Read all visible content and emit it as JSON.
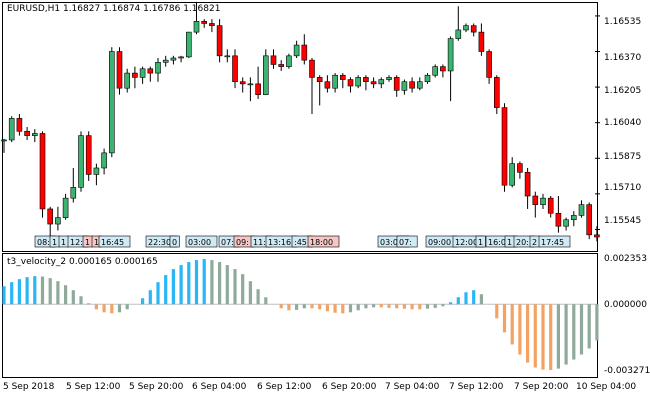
{
  "symbol_header": "EURUSD,H1  1.16827 1.16874 1.16786 1.16821",
  "indicator_header": "t3_velocity_2 0.000165 0.000165",
  "colors": {
    "bull": "#3cb371",
    "bear": "#ff0000",
    "up_hist": "#29b6f6",
    "down_hist": "#f4a261",
    "neutral_hist": "#8faa9a",
    "grid": "#c0c0c0"
  },
  "price_axis": [
    "1.16535",
    "1.16370",
    "1.16205",
    "1.16040",
    "1.15875",
    "1.15710",
    "1.15545"
  ],
  "indicator_axis": [
    "0.002353",
    "0.000000",
    "-0.003271"
  ],
  "time_axis": [
    "5 Sep 2018",
    "5 Sep 12:00",
    "5 Sep 20:00",
    "6 Sep 04:00",
    "6 Sep 12:00",
    "6 Sep 20:00",
    "7 Sep 04:00",
    "7 Sep 12:00",
    "7 Sep 20:00",
    "10 Sep 04:00"
  ],
  "session_labels": [
    {
      "text": "08:",
      "color": "blue"
    },
    {
      "text": "1",
      "color": "blue"
    },
    {
      "text": "1",
      "color": "blue"
    },
    {
      "text": "12:",
      "color": "blue"
    },
    {
      "text": "1",
      "color": "red"
    },
    {
      "text": "1",
      "color": "red"
    },
    {
      "text": "16:45",
      "color": "blue"
    },
    {
      "text": "22:30",
      "color": "blue"
    },
    {
      "text": "0",
      "color": "blue"
    },
    {
      "text": "03:00",
      "color": "blue"
    },
    {
      "text": "07:",
      "color": "blue"
    },
    {
      "text": "09:",
      "color": "red"
    },
    {
      "text": "11:",
      "color": "blue"
    },
    {
      "text": "13:16",
      "color": "blue"
    },
    {
      "text": ":45",
      "color": "blue"
    },
    {
      "text": "18:00",
      "color": "red"
    },
    {
      "text": "03:00",
      "color": "blue"
    },
    {
      "text": "07:",
      "color": "blue"
    },
    {
      "text": "09:00",
      "color": "blue"
    },
    {
      "text": "12:00",
      "color": "blue"
    },
    {
      "text": "1",
      "color": "blue"
    },
    {
      "text": "16:00",
      "color": "blue"
    },
    {
      "text": "1",
      "color": "blue"
    },
    {
      "text": "20:",
      "color": "blue"
    },
    {
      "text": "2",
      "color": "blue"
    },
    {
      "text": "17:45",
      "color": "blue"
    }
  ],
  "chart_data": [
    {
      "type": "candlestick",
      "title": "EURUSD,H1",
      "ylim": [
        1.15445,
        1.16595
      ],
      "series": [
        {
          "name": "EURUSD,H1",
          "ohlc": [
            [
              1.1596,
              1.15965,
              1.159,
              1.1596
            ],
            [
              1.1596,
              1.1607,
              1.1595,
              1.1606
            ],
            [
              1.1606,
              1.1608,
              1.1598,
              1.16
            ],
            [
              1.16,
              1.1602,
              1.1596,
              1.1598
            ],
            [
              1.1598,
              1.1601,
              1.1595,
              1.1599
            ],
            [
              1.1599,
              1.16,
              1.156,
              1.1564
            ],
            [
              1.1564,
              1.1565,
              1.155,
              1.1557
            ],
            [
              1.1557,
              1.1565,
              1.1554,
              1.156
            ],
            [
              1.156,
              1.1571,
              1.1559,
              1.1569
            ],
            [
              1.1569,
              1.1583,
              1.1567,
              1.1574
            ],
            [
              1.1574,
              1.16,
              1.1572,
              1.1598
            ],
            [
              1.1598,
              1.16,
              1.1577,
              1.158
            ],
            [
              1.158,
              1.1585,
              1.1575,
              1.1583
            ],
            [
              1.1583,
              1.1592,
              1.158,
              1.159
            ],
            [
              1.159,
              1.1639,
              1.1588,
              1.1637
            ],
            [
              1.1637,
              1.1639,
              1.1617,
              1.162
            ],
            [
              1.162,
              1.1629,
              1.1618,
              1.1627
            ],
            [
              1.1627,
              1.163,
              1.162,
              1.1625
            ],
            [
              1.1625,
              1.163,
              1.1622,
              1.1629
            ],
            [
              1.1629,
              1.163,
              1.1623,
              1.1627
            ],
            [
              1.1627,
              1.1634,
              1.1623,
              1.1632
            ],
            [
              1.1632,
              1.1635,
              1.163,
              1.1633
            ],
            [
              1.1633,
              1.1635,
              1.1631,
              1.1634
            ],
            [
              1.1634,
              1.1635,
              1.1632,
              1.16345
            ],
            [
              1.16345,
              1.1646,
              1.1634,
              1.1646
            ],
            [
              1.1646,
              1.166,
              1.1645,
              1.1651
            ],
            [
              1.1651,
              1.1652,
              1.1648,
              1.165
            ],
            [
              1.165,
              1.1652,
              1.1646,
              1.1649
            ],
            [
              1.1649,
              1.1652,
              1.1632,
              1.1635
            ],
            [
              1.1635,
              1.1638,
              1.1632,
              1.1635
            ],
            [
              1.1635,
              1.1638,
              1.162,
              1.1623
            ],
            [
              1.1623,
              1.1625,
              1.1618,
              1.1622
            ],
            [
              1.1622,
              1.1625,
              1.1614,
              1.1622
            ],
            [
              1.1622,
              1.163,
              1.1615,
              1.1617
            ],
            [
              1.1617,
              1.1638,
              1.1617,
              1.1635
            ],
            [
              1.1635,
              1.1638,
              1.1629,
              1.1631
            ],
            [
              1.1631,
              1.1633,
              1.1628,
              1.163
            ],
            [
              1.163,
              1.1636,
              1.1629,
              1.1635
            ],
            [
              1.1635,
              1.1642,
              1.1634,
              1.164
            ],
            [
              1.164,
              1.1645,
              1.1631,
              1.1633
            ],
            [
              1.1633,
              1.1634,
              1.1608,
              1.1625
            ],
            [
              1.1625,
              1.1626,
              1.1612,
              1.1623
            ],
            [
              1.1623,
              1.1626,
              1.1618,
              1.162
            ],
            [
              1.162,
              1.1627,
              1.1618,
              1.1626
            ],
            [
              1.1626,
              1.1627,
              1.162,
              1.1624
            ],
            [
              1.1624,
              1.1625,
              1.1618,
              1.1621
            ],
            [
              1.1621,
              1.1626,
              1.162,
              1.1625
            ],
            [
              1.1625,
              1.1626,
              1.1619,
              1.1623
            ],
            [
              1.1623,
              1.1625,
              1.162,
              1.1622
            ],
            [
              1.1622,
              1.1625,
              1.162,
              1.1624
            ],
            [
              1.1624,
              1.1626,
              1.1623,
              1.1625
            ],
            [
              1.1625,
              1.1626,
              1.1616,
              1.1619
            ],
            [
              1.1619,
              1.1624,
              1.1617,
              1.1623
            ],
            [
              1.1623,
              1.1625,
              1.1618,
              1.162
            ],
            [
              1.162,
              1.1625,
              1.1619,
              1.1623
            ],
            [
              1.1623,
              1.1627,
              1.1622,
              1.1626
            ],
            [
              1.1626,
              1.1631,
              1.1625,
              1.163
            ],
            [
              1.163,
              1.1631,
              1.1625,
              1.1628
            ],
            [
              1.1628,
              1.1644,
              1.1614,
              1.1643
            ],
            [
              1.1643,
              1.1658,
              1.1642,
              1.1647
            ],
            [
              1.1647,
              1.165,
              1.1646,
              1.1649
            ],
            [
              1.1649,
              1.165,
              1.1644,
              1.1646
            ],
            [
              1.1646,
              1.165,
              1.1635,
              1.1637
            ],
            [
              1.1637,
              1.1638,
              1.1622,
              1.1625
            ],
            [
              1.1625,
              1.1626,
              1.1608,
              1.1611
            ],
            [
              1.1611,
              1.1613,
              1.1572,
              1.1575
            ],
            [
              1.1575,
              1.1588,
              1.1574,
              1.1585
            ],
            [
              1.1585,
              1.1586,
              1.1578,
              1.1581
            ],
            [
              1.1581,
              1.1583,
              1.1564,
              1.157
            ],
            [
              1.157,
              1.1572,
              1.156,
              1.1566
            ],
            [
              1.1566,
              1.1571,
              1.1564,
              1.1569
            ],
            [
              1.1569,
              1.157,
              1.156,
              1.1562
            ],
            [
              1.1562,
              1.157,
              1.1553,
              1.1556
            ],
            [
              1.1556,
              1.156,
              1.1554,
              1.1559
            ],
            [
              1.1559,
              1.1563,
              1.1556,
              1.1561
            ],
            [
              1.1561,
              1.1568,
              1.156,
              1.1566
            ],
            [
              1.1566,
              1.1567,
              1.155,
              1.1552
            ],
            [
              1.1552,
              1.1556,
              1.1549,
              1.1551
            ]
          ]
        }
      ]
    },
    {
      "type": "histogram",
      "title": "t3_velocity_2 0.000165 0.000165",
      "ylim": [
        -0.003271,
        0.002353
      ],
      "series": [
        {
          "name": "t3_velocity_2",
          "values": [
            0.0009,
            0.0011,
            0.00125,
            0.00135,
            0.0014,
            0.00138,
            0.0013,
            0.00115,
            0.00095,
            0.0007,
            0.0004,
            5e-05,
            -0.00025,
            -0.0004,
            -0.00045,
            -0.0004,
            -0.00025,
            0.0,
            0.0003,
            0.0007,
            0.0011,
            0.00145,
            0.00175,
            0.00195,
            0.0021,
            0.0022,
            0.00225,
            0.0022,
            0.0021,
            0.00195,
            0.00175,
            0.0015,
            0.00115,
            0.00075,
            0.00035,
            0.0,
            -0.0002,
            -0.0003,
            -0.00028,
            -0.0002,
            -0.0002,
            -0.00025,
            -0.00035,
            -0.00042,
            -0.00045,
            -0.0004,
            -0.0003,
            -0.0002,
            -0.00015,
            -0.00015,
            -0.00018,
            -0.0002,
            -0.00022,
            -0.00025,
            -0.00025,
            -0.00022,
            -0.00018,
            -0.0001,
            0.0001,
            0.00035,
            0.0006,
            0.0007,
            0.0005,
            0.0,
            -0.0007,
            -0.0014,
            -0.002,
            -0.0025,
            -0.0029,
            -0.00315,
            -0.00325,
            -0.00327,
            -0.0032,
            -0.003,
            -0.00275,
            -0.0025,
            -0.0022,
            -0.0018
          ]
        }
      ]
    }
  ]
}
